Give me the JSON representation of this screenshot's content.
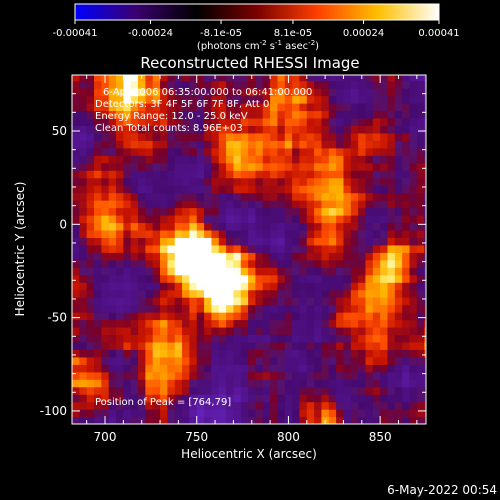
{
  "chart_data": {
    "type": "heatmap",
    "title": "Reconstructed RHESSI Image",
    "xlabel": "Heliocentric X (arcsec)",
    "ylabel": "Heliocentric Y (arcsec)",
    "xlim": [
      682,
      875
    ],
    "ylim": [
      -107,
      80
    ],
    "xticks": [
      "700",
      "750",
      "800",
      "850"
    ],
    "xtick_values": [
      700,
      750,
      800,
      850
    ],
    "yticks": [
      "50",
      "0",
      "-50",
      "-100"
    ],
    "ytick_values": [
      50,
      0,
      -50,
      -100
    ],
    "colorbar": {
      "ticks": [
        "-0.00041",
        "-0.00024",
        "-8.1e-05",
        "8.1e-05",
        "0.00024",
        "0.00041"
      ],
      "tick_values": [
        -0.00041,
        -0.00024,
        -8.1e-05,
        8.1e-05,
        0.00024,
        0.00041
      ],
      "unit_label": "(photons cm",
      "unit_sup1": "-2",
      "unit_mid": " s",
      "unit_sup2": "-1",
      "unit_mid2": " asec",
      "unit_sup3": "-2",
      "unit_end": ")",
      "colors": [
        "#0000ff",
        "#3a0070",
        "#000000",
        "#7a0000",
        "#ff4000",
        "#ffc000",
        "#ffffff"
      ]
    },
    "annotations": {
      "time": "6-Apr-2006 06:35:00.000 to 06:41:00.000",
      "detectors": "Detectors: 3F 4F 5F 6F 7F 8F, Att 0",
      "energy": "Energy Range: 12.0 - 25.0 keV",
      "clean": "Clean     Total counts: 8.96E+03",
      "peak": "Position of Peak = [764,79]"
    },
    "peak_position": [
      764,
      79
    ],
    "hot_regions": [
      {
        "x": 745,
        "y": -15,
        "intensity": 0.95
      },
      {
        "x": 765,
        "y": -35,
        "intensity": 0.9
      },
      {
        "x": 710,
        "y": 70,
        "intensity": 0.85
      },
      {
        "x": 800,
        "y": 60,
        "intensity": 0.8
      },
      {
        "x": 850,
        "y": -40,
        "intensity": 0.85
      },
      {
        "x": 820,
        "y": 20,
        "intensity": 0.7
      },
      {
        "x": 735,
        "y": -70,
        "intensity": 0.75
      },
      {
        "x": 700,
        "y": 5,
        "intensity": 0.6
      },
      {
        "x": 770,
        "y": 40,
        "intensity": 0.65
      },
      {
        "x": 690,
        "y": -85,
        "intensity": 0.55
      }
    ]
  },
  "footer": {
    "date": "6-May-2022 00:54"
  }
}
